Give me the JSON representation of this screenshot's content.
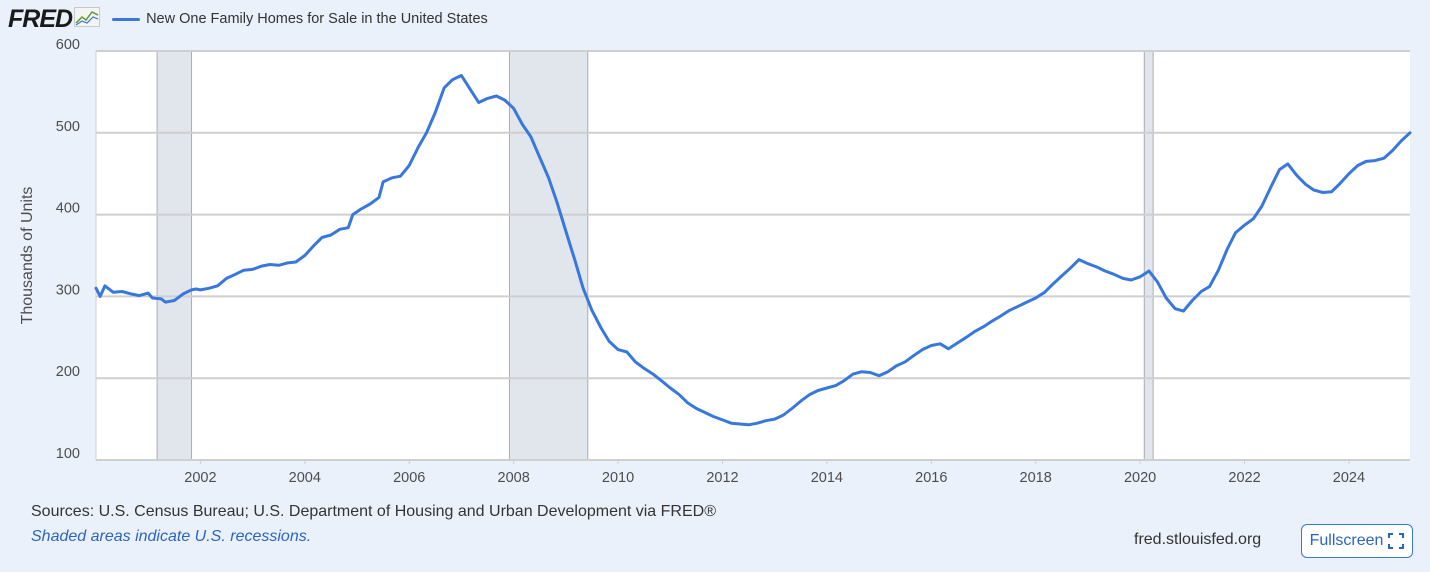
{
  "header": {
    "logo_text": "FRED",
    "legend_label": "New One Family Homes for Sale in the United States"
  },
  "footer": {
    "sources": "Sources: U.S. Census Bureau; U.S. Department of Housing and Urban Development via FRED®",
    "recession_note": "Shaded areas indicate U.S. recessions.",
    "site_url": "fred.stlouisfed.org",
    "fullscreen_label": "Fullscreen"
  },
  "icons": {
    "logo_mark": "fred-chart-icon",
    "fullscreen": "expand-corners-icon"
  },
  "colors": {
    "series": "#3877dc",
    "recession": "#e1e5ec",
    "background": "#ebf1fa",
    "plot_background": "#ffffff",
    "grid": "#cfcfcf"
  },
  "chart_data": {
    "type": "line",
    "title": "",
    "ylabel": "Thousands of Units",
    "xlabel": "",
    "x_range": [
      2000.0,
      2025.17
    ],
    "ylim": [
      100,
      600
    ],
    "yticks": [
      100,
      200,
      300,
      400,
      500,
      600
    ],
    "xticks": [
      2002,
      2004,
      2006,
      2008,
      2010,
      2012,
      2014,
      2016,
      2018,
      2020,
      2022,
      2024
    ],
    "grid": true,
    "legend_position": "top-left",
    "recessions": [
      [
        2001.17,
        2001.83
      ],
      [
        2007.92,
        2009.42
      ],
      [
        2020.08,
        2020.25
      ]
    ],
    "series": [
      {
        "name": "New One Family Homes for Sale in the United States",
        "points": [
          [
            2000.0,
            310
          ],
          [
            2000.08,
            300
          ],
          [
            2000.17,
            313
          ],
          [
            2000.33,
            305
          ],
          [
            2000.5,
            306
          ],
          [
            2000.67,
            303
          ],
          [
            2000.83,
            301
          ],
          [
            2001.0,
            304
          ],
          [
            2001.08,
            298
          ],
          [
            2001.25,
            297
          ],
          [
            2001.33,
            293
          ],
          [
            2001.5,
            295
          ],
          [
            2001.67,
            303
          ],
          [
            2001.83,
            308
          ],
          [
            2001.92,
            309
          ],
          [
            2002.0,
            308
          ],
          [
            2002.17,
            310
          ],
          [
            2002.33,
            313
          ],
          [
            2002.5,
            322
          ],
          [
            2002.67,
            327
          ],
          [
            2002.83,
            332
          ],
          [
            2003.0,
            333
          ],
          [
            2003.17,
            337
          ],
          [
            2003.33,
            339
          ],
          [
            2003.5,
            338
          ],
          [
            2003.67,
            341
          ],
          [
            2003.83,
            342
          ],
          [
            2004.0,
            350
          ],
          [
            2004.17,
            362
          ],
          [
            2004.33,
            372
          ],
          [
            2004.5,
            375
          ],
          [
            2004.67,
            382
          ],
          [
            2004.83,
            384
          ],
          [
            2004.92,
            400
          ],
          [
            2005.08,
            407
          ],
          [
            2005.25,
            413
          ],
          [
            2005.42,
            421
          ],
          [
            2005.5,
            440
          ],
          [
            2005.67,
            445
          ],
          [
            2005.83,
            447
          ],
          [
            2006.0,
            460
          ],
          [
            2006.17,
            482
          ],
          [
            2006.33,
            500
          ],
          [
            2006.5,
            525
          ],
          [
            2006.67,
            555
          ],
          [
            2006.83,
            565
          ],
          [
            2007.0,
            570
          ],
          [
            2007.17,
            553
          ],
          [
            2007.33,
            537
          ],
          [
            2007.5,
            542
          ],
          [
            2007.67,
            545
          ],
          [
            2007.83,
            540
          ],
          [
            2008.0,
            530
          ],
          [
            2008.17,
            510
          ],
          [
            2008.33,
            495
          ],
          [
            2008.5,
            470
          ],
          [
            2008.67,
            445
          ],
          [
            2008.83,
            415
          ],
          [
            2009.0,
            380
          ],
          [
            2009.17,
            345
          ],
          [
            2009.33,
            310
          ],
          [
            2009.5,
            283
          ],
          [
            2009.67,
            262
          ],
          [
            2009.83,
            245
          ],
          [
            2010.0,
            235
          ],
          [
            2010.17,
            232
          ],
          [
            2010.33,
            220
          ],
          [
            2010.5,
            212
          ],
          [
            2010.67,
            205
          ],
          [
            2010.83,
            197
          ],
          [
            2011.0,
            188
          ],
          [
            2011.17,
            180
          ],
          [
            2011.33,
            170
          ],
          [
            2011.5,
            163
          ],
          [
            2011.67,
            158
          ],
          [
            2011.83,
            153
          ],
          [
            2012.0,
            149
          ],
          [
            2012.17,
            145
          ],
          [
            2012.33,
            144
          ],
          [
            2012.5,
            143
          ],
          [
            2012.67,
            145
          ],
          [
            2012.83,
            148
          ],
          [
            2013.0,
            150
          ],
          [
            2013.17,
            155
          ],
          [
            2013.33,
            163
          ],
          [
            2013.5,
            172
          ],
          [
            2013.67,
            180
          ],
          [
            2013.83,
            185
          ],
          [
            2014.0,
            188
          ],
          [
            2014.17,
            191
          ],
          [
            2014.33,
            197
          ],
          [
            2014.5,
            205
          ],
          [
            2014.67,
            208
          ],
          [
            2014.83,
            207
          ],
          [
            2015.0,
            203
          ],
          [
            2015.17,
            208
          ],
          [
            2015.33,
            215
          ],
          [
            2015.5,
            220
          ],
          [
            2015.67,
            228
          ],
          [
            2015.83,
            235
          ],
          [
            2016.0,
            240
          ],
          [
            2016.17,
            242
          ],
          [
            2016.33,
            236
          ],
          [
            2016.5,
            243
          ],
          [
            2016.67,
            250
          ],
          [
            2016.83,
            257
          ],
          [
            2017.0,
            263
          ],
          [
            2017.17,
            270
          ],
          [
            2017.33,
            276
          ],
          [
            2017.5,
            283
          ],
          [
            2017.67,
            288
          ],
          [
            2017.83,
            293
          ],
          [
            2018.0,
            298
          ],
          [
            2018.17,
            305
          ],
          [
            2018.33,
            315
          ],
          [
            2018.5,
            325
          ],
          [
            2018.67,
            335
          ],
          [
            2018.83,
            345
          ],
          [
            2019.0,
            340
          ],
          [
            2019.17,
            336
          ],
          [
            2019.33,
            331
          ],
          [
            2019.5,
            327
          ],
          [
            2019.67,
            322
          ],
          [
            2019.83,
            320
          ],
          [
            2020.0,
            324
          ],
          [
            2020.17,
            331
          ],
          [
            2020.33,
            318
          ],
          [
            2020.5,
            298
          ],
          [
            2020.67,
            285
          ],
          [
            2020.83,
            282
          ],
          [
            2021.0,
            295
          ],
          [
            2021.17,
            306
          ],
          [
            2021.33,
            312
          ],
          [
            2021.5,
            332
          ],
          [
            2021.67,
            358
          ],
          [
            2021.83,
            378
          ],
          [
            2022.0,
            387
          ],
          [
            2022.17,
            395
          ],
          [
            2022.33,
            410
          ],
          [
            2022.5,
            433
          ],
          [
            2022.67,
            455
          ],
          [
            2022.83,
            462
          ],
          [
            2023.0,
            448
          ],
          [
            2023.17,
            437
          ],
          [
            2023.33,
            430
          ],
          [
            2023.5,
            427
          ],
          [
            2023.67,
            428
          ],
          [
            2023.83,
            438
          ],
          [
            2024.0,
            450
          ],
          [
            2024.17,
            460
          ],
          [
            2024.33,
            465
          ],
          [
            2024.5,
            466
          ],
          [
            2024.67,
            469
          ],
          [
            2024.83,
            478
          ],
          [
            2025.0,
            490
          ],
          [
            2025.17,
            500
          ]
        ]
      }
    ]
  }
}
